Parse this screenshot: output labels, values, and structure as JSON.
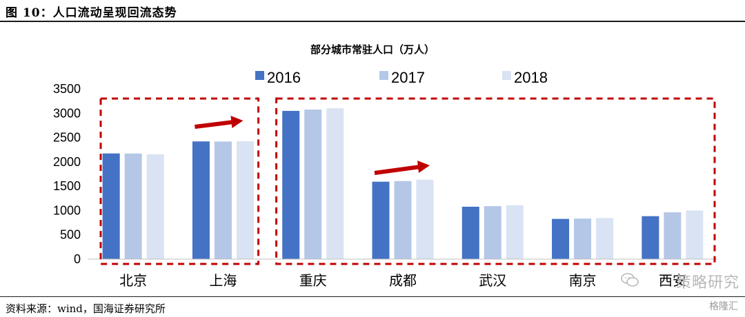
{
  "figure": {
    "title": "图 10：人口流动呈现回流态势",
    "source": "资料来源：wind，国海证券研究所"
  },
  "watermark": {
    "text": "策略研究",
    "corner_text": "格隆汇"
  },
  "chart_data": {
    "type": "bar",
    "title": "部分城市常驻人口（万人）",
    "categories": [
      "北京",
      "上海",
      "重庆",
      "成都",
      "武汉",
      "南京",
      "西安"
    ],
    "series": [
      {
        "name": "2016",
        "color": "#4472c4",
        "values": [
          2173,
          2420,
          3048,
          1592,
          1077,
          827,
          883
        ]
      },
      {
        "name": "2017",
        "color": "#b4c7e7",
        "values": [
          2171,
          2418,
          3075,
          1605,
          1089,
          834,
          962
        ]
      },
      {
        "name": "2018",
        "color": "#dae3f3",
        "values": [
          2154,
          2424,
          3102,
          1633,
          1108,
          844,
          1000
        ]
      }
    ],
    "y_ticks": [
      0,
      500,
      1000,
      1500,
      2000,
      2500,
      3000,
      3500
    ],
    "ylim": [
      0,
      3500
    ],
    "legend_position": "top-center",
    "annotations": {
      "boxes": [
        {
          "label": "group-1",
          "from_category": 0,
          "to_category": 1,
          "color": "#c00000"
        },
        {
          "label": "group-2",
          "from_category": 2,
          "to_category": 6,
          "color": "#c00000"
        }
      ],
      "arrows": [
        {
          "near_category": 1,
          "color": "#c00000"
        },
        {
          "near_category": 3,
          "color": "#c00000"
        }
      ]
    }
  }
}
